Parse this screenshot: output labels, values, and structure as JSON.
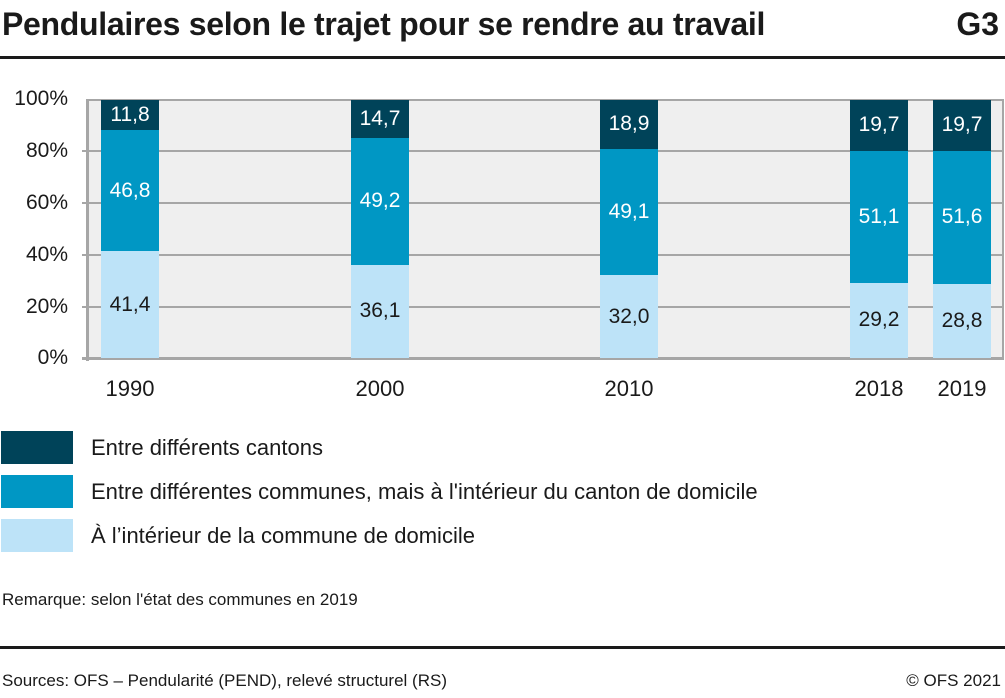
{
  "header": {
    "title": "Pendulaires selon le trajet pour se rendre au travail",
    "graph_number": "G3"
  },
  "colors": {
    "between_cantons": "#004359",
    "between_communes": "#0097c4",
    "within_commune": "#bde3f8",
    "plot_background": "#efefef",
    "gridline": "#a6a6a6"
  },
  "y_ticks": [
    "100%",
    "80%",
    "60%",
    "40%",
    "20%",
    "0%"
  ],
  "bars": [
    {
      "year": "1990",
      "cantons": "11,8",
      "communes": "46,8",
      "domicile": "41,4"
    },
    {
      "year": "2000",
      "cantons": "14,7",
      "communes": "49,2",
      "domicile": "36,1"
    },
    {
      "year": "2010",
      "cantons": "18,9",
      "communes": "49,1",
      "domicile": "32,0"
    },
    {
      "year": "2018",
      "cantons": "19,7",
      "communes": "51,1",
      "domicile": "29,2"
    },
    {
      "year": "2019",
      "cantons": "19,7",
      "communes": "51,6",
      "domicile": "28,8"
    }
  ],
  "legend": [
    {
      "label": "Entre différents cantons"
    },
    {
      "label": "Entre différentes communes, mais à l'intérieur du canton de domicile"
    },
    {
      "label": "À l’intérieur de la commune de domicile"
    }
  ],
  "footer": {
    "remark": "Remarque: selon l'état des communes en 2019",
    "sources": "Sources: OFS – Pendularité (PEND), relevé structurel (RS)",
    "copyright": "© OFS 2021"
  },
  "chart_data": {
    "type": "bar",
    "stacked": true,
    "title": "Pendulaires selon le trajet pour se rendre au travail",
    "categories": [
      "1990",
      "2000",
      "2010",
      "2018",
      "2019"
    ],
    "series": [
      {
        "name": "À l’intérieur de la commune de domicile",
        "color": "#bde3f8",
        "values": [
          41.4,
          36.1,
          32.0,
          29.2,
          28.8
        ]
      },
      {
        "name": "Entre différentes communes, mais à l'intérieur du canton de domicile",
        "color": "#0097c4",
        "values": [
          46.8,
          49.2,
          49.1,
          51.1,
          51.6
        ]
      },
      {
        "name": "Entre différents cantons",
        "color": "#004359",
        "values": [
          11.8,
          14.7,
          18.9,
          19.7,
          19.7
        ]
      }
    ],
    "xlabel": "",
    "ylabel": "",
    "ylim": [
      0,
      100
    ],
    "yticks": [
      "0%",
      "20%",
      "40%",
      "60%",
      "80%",
      "100%"
    ],
    "grid": true,
    "legend_position": "bottom",
    "annotations": [
      "Remarque: selon l'état des communes en 2019"
    ]
  }
}
